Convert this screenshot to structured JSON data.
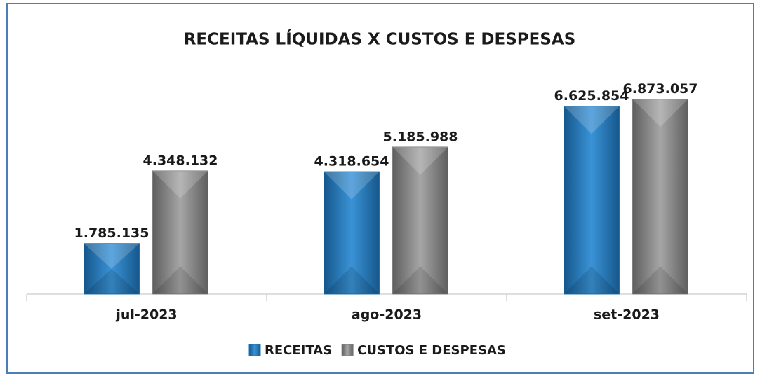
{
  "chart_data": {
    "type": "bar",
    "title": "RECEITAS LÍQUIDAS X CUSTOS E DESPESAS",
    "categories": [
      "jul-2023",
      "ago-2023",
      "set-2023"
    ],
    "series": [
      {
        "name": "RECEITAS",
        "color": "#1f74b8",
        "values": [
          1785135,
          4318654,
          6625854
        ],
        "value_labels": [
          "1.785.135",
          "4.318.654",
          "6.625.854"
        ]
      },
      {
        "name": "CUSTOS E DESPESAS",
        "color": "#808080",
        "values": [
          4348132,
          5185988,
          6873057
        ],
        "value_labels": [
          "4.348.132",
          "5.185.988",
          "6.873.057"
        ]
      }
    ],
    "ylim": [
      0,
      8000000
    ],
    "legend": "bottom"
  }
}
